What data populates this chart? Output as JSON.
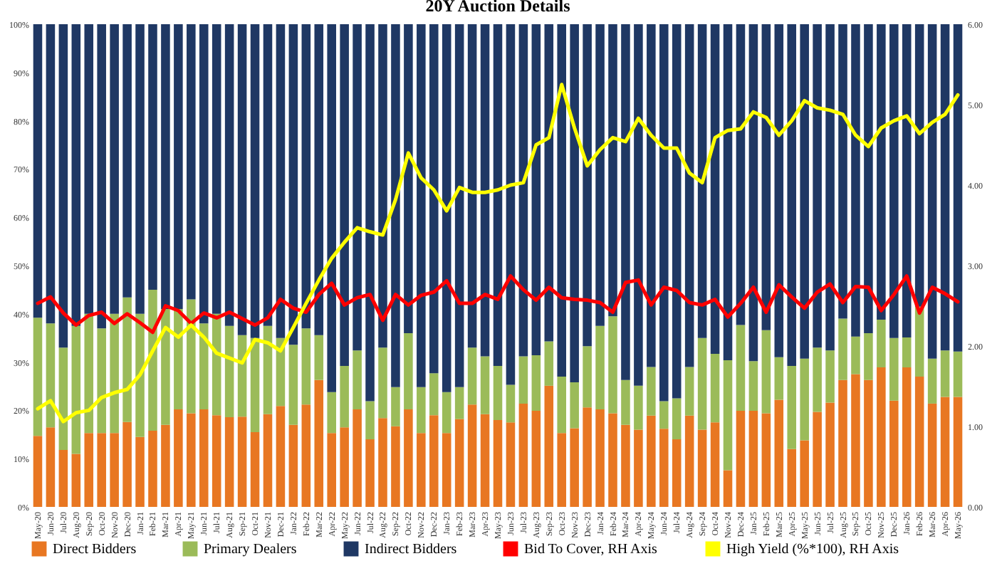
{
  "chart_data": {
    "type": "bar",
    "title": "20Y Auction Details",
    "stacked": true,
    "legend": "bottom",
    "categories": [
      "May-20",
      "Jun-20",
      "Jul-20",
      "Aug-20",
      "Sep-20",
      "Oct-20",
      "Nov-20",
      "Dec-20",
      "Jan-21",
      "Feb-21",
      "Mar-21",
      "Apr-21",
      "May-21",
      "Jun-21",
      "Jul-21",
      "Aug-21",
      "Sep-21",
      "Oct-21",
      "Nov-21",
      "Dec-21",
      "Jan-22",
      "Feb-22",
      "Mar-22",
      "Apr-22",
      "May-22",
      "Jun-22",
      "Jul-22",
      "Aug-22",
      "Sep-22",
      "Oct-22",
      "Nov-22",
      "Dec-22",
      "Jan-23",
      "Feb-23",
      "Mar-23",
      "Apr-23",
      "May-23",
      "Jun-23",
      "Jul-23",
      "Aug-23",
      "Sep-23",
      "Oct-23",
      "Nov-23",
      "Dec-23",
      "Jan-24",
      "Feb-24",
      "Mar-24",
      "Apr-24",
      "May-24",
      "Jun-24",
      "Jul-24",
      "Aug-24",
      "Sep-24",
      "Oct-24",
      "Nov-24",
      "Dec-24",
      "Jan-25",
      "Feb-25",
      "Mar-25",
      "Apr-25",
      "May-25",
      "Jun-25",
      "Jul-25",
      "Aug-25",
      "Sep-25",
      "Oct-25",
      "Nov-25",
      "Dec-25",
      "Jan-26",
      "Feb-26",
      "Mar-26",
      "Apr-26",
      "May-26"
    ],
    "ylim": [
      0,
      100
    ],
    "yticks": [
      {
        "value": 0,
        "label": "0%"
      },
      {
        "value": 10,
        "label": "10%"
      },
      {
        "value": 20,
        "label": "20%"
      },
      {
        "value": 30,
        "label": "30%"
      },
      {
        "value": 40,
        "label": "40%"
      },
      {
        "value": 50,
        "label": "50%"
      },
      {
        "value": 60,
        "label": "60%"
      },
      {
        "value": 70,
        "label": "70%"
      },
      {
        "value": 80,
        "label": "80%"
      },
      {
        "value": 90,
        "label": "90%"
      },
      {
        "value": 100,
        "label": "100%"
      }
    ],
    "y2lim": [
      0,
      6
    ],
    "y2ticks": [
      {
        "value": 0,
        "label": "0.00"
      },
      {
        "value": 1,
        "label": "1.00"
      },
      {
        "value": 2,
        "label": "2.00"
      },
      {
        "value": 3,
        "label": "3.00"
      },
      {
        "value": 4,
        "label": "4.00"
      },
      {
        "value": 5,
        "label": "5.00"
      },
      {
        "value": 6,
        "label": "6.00"
      }
    ],
    "series": [
      {
        "name": "Direct Bidders",
        "color": "#e87722",
        "values": [
          14.7,
          16.5,
          11.8,
          11,
          15.3,
          15.3,
          15.3,
          17.6,
          14.5,
          15.8,
          17,
          20.2,
          19.4,
          20.2,
          19,
          18.6,
          18.7,
          15.5,
          19.2,
          20.9,
          17,
          21.2,
          26.3,
          15.3,
          16.5,
          20.2,
          14,
          18.4,
          16.7,
          20.2,
          15.3,
          19,
          15.3,
          18.2,
          21.2,
          19.2,
          18,
          17.5,
          21.4,
          19.9,
          25.1,
          15.3,
          16.3,
          20.6,
          20.2,
          19.4,
          17,
          16,
          18.9,
          16.2,
          14,
          18.9,
          16,
          17.5,
          7.6,
          19.9,
          19.9,
          19.4,
          22.2,
          12,
          13.8,
          19.7,
          21.6,
          26.3,
          27.5,
          26.3,
          28.9,
          22,
          28.9,
          27,
          21.4,
          22.8,
          22.8
        ]
      },
      {
        "name": "Primary Dealers",
        "color": "#9bbb59",
        "values": [
          24.5,
          21.5,
          21.2,
          26.5,
          24.7,
          21.7,
          24.7,
          25.8,
          25.5,
          29.2,
          24,
          20.8,
          23.6,
          17.8,
          21,
          18.9,
          16.9,
          19.5,
          18.3,
          14.1,
          16.6,
          15.8,
          9.3,
          8.5,
          12.7,
          12.2,
          7.9,
          14.6,
          8.1,
          15.8,
          9.5,
          8.7,
          8.5,
          6.6,
          11.8,
          12,
          11.2,
          7.8,
          9.8,
          11.5,
          9.2,
          11.7,
          9.5,
          12.7,
          17.3,
          20.1,
          9.3,
          9.1,
          10.1,
          5.7,
          8.5,
          10.1,
          19,
          14.2,
          22.8,
          17.8,
          10.3,
          17.2,
          8.8,
          17.2,
          16.9,
          13.3,
          10.8,
          12.7,
          7.8,
          9.7,
          9.9,
          13,
          6.2,
          14.5,
          9.3,
          9.6,
          9.4
        ]
      },
      {
        "name": "Indirect Bidders",
        "color": "#1f3864",
        "values": [
          60.8,
          62,
          67,
          62.5,
          60,
          63,
          60,
          56.6,
          60,
          55,
          59,
          59,
          57,
          62,
          60,
          62.5,
          64.4,
          65,
          62.5,
          65,
          66.4,
          63,
          64.4,
          76.2,
          70.8,
          67.6,
          78.1,
          67,
          75.2,
          64,
          75.2,
          72.3,
          76.2,
          75.2,
          67,
          68.8,
          70.8,
          74.7,
          68.8,
          68.6,
          65.7,
          73,
          74.2,
          66.7,
          62.5,
          60.5,
          73.7,
          74.9,
          71,
          78.1,
          77.5,
          71,
          65,
          68.3,
          69.6,
          62.3,
          69.8,
          63.4,
          69,
          70.8,
          69.3,
          67,
          67.6,
          61,
          64.7,
          64,
          61.2,
          65,
          64.9,
          58.5,
          69.3,
          67.6,
          67.8
        ]
      },
      {
        "name": "Bid To Cover, RH Axis",
        "type": "line",
        "axis": "y2",
        "color": "#ff0000",
        "values": [
          2.53,
          2.61,
          2.41,
          2.26,
          2.38,
          2.42,
          2.28,
          2.4,
          2.29,
          2.17,
          2.5,
          2.44,
          2.28,
          2.41,
          2.35,
          2.42,
          2.34,
          2.26,
          2.35,
          2.58,
          2.47,
          2.42,
          2.64,
          2.78,
          2.51,
          2.6,
          2.64,
          2.32,
          2.64,
          2.51,
          2.63,
          2.67,
          2.81,
          2.53,
          2.53,
          2.64,
          2.58,
          2.87,
          2.7,
          2.57,
          2.73,
          2.6,
          2.58,
          2.57,
          2.54,
          2.42,
          2.79,
          2.82,
          2.51,
          2.73,
          2.69,
          2.54,
          2.51,
          2.58,
          2.36,
          2.53,
          2.73,
          2.42,
          2.76,
          2.61,
          2.47,
          2.67,
          2.77,
          2.54,
          2.74,
          2.73,
          2.44,
          2.64,
          2.87,
          2.41,
          2.73,
          2.65,
          2.55
        ]
      },
      {
        "name": "High Yield (%*100), RH Axis",
        "type": "line",
        "axis": "y2",
        "color": "#ffff00",
        "values": [
          1.22,
          1.32,
          1.06,
          1.17,
          1.2,
          1.36,
          1.42,
          1.46,
          1.64,
          1.94,
          2.23,
          2.11,
          2.26,
          2.11,
          1.91,
          1.85,
          1.79,
          2.08,
          2.04,
          1.94,
          2.23,
          2.53,
          2.82,
          3.09,
          3.29,
          3.47,
          3.42,
          3.38,
          3.82,
          4.4,
          4.09,
          3.94,
          3.68,
          3.97,
          3.91,
          3.91,
          3.94,
          4,
          4.03,
          4.5,
          4.59,
          5.25,
          4.71,
          4.24,
          4.44,
          4.59,
          4.54,
          4.83,
          4.62,
          4.46,
          4.46,
          4.15,
          4.03,
          4.59,
          4.68,
          4.7,
          4.91,
          4.84,
          4.62,
          4.8,
          5.05,
          4.96,
          4.93,
          4.88,
          4.62,
          4.48,
          4.71,
          4.8,
          4.86,
          4.64,
          4.78,
          4.88,
          5.12
        ]
      }
    ]
  }
}
